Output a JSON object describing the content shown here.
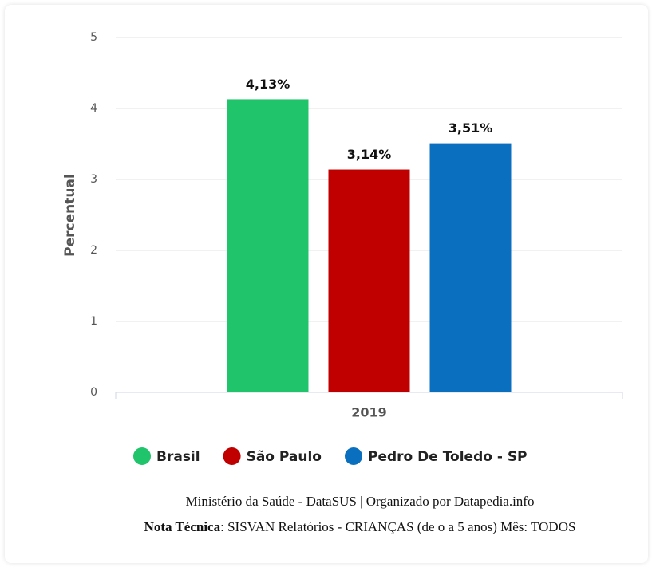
{
  "chart_data": {
    "type": "bar",
    "categories": [
      "2019"
    ],
    "series": [
      {
        "name": "Brasil",
        "color": "#1fc46b",
        "values": [
          4.13
        ],
        "value_labels": [
          "4,13%"
        ]
      },
      {
        "name": "São Paulo",
        "color": "#c00000",
        "values": [
          3.14
        ],
        "value_labels": [
          "3,14%"
        ]
      },
      {
        "name": "Pedro De Toledo - SP",
        "color": "#0b6fc0",
        "values": [
          3.51
        ],
        "value_labels": [
          "3,51%"
        ]
      }
    ],
    "ylabel": "Percentual",
    "ylim": [
      0,
      5
    ],
    "yticks": [
      0,
      1,
      2,
      3,
      4,
      5
    ],
    "grid": true,
    "source": "Ministério da Saúde - DataSUS | Organizado por Datapedia.info",
    "note_label": "Nota Técnica",
    "note": ": SISVAN Relatórios - CRIANÇAS (de o a 5 anos) Mês: TODOS"
  }
}
